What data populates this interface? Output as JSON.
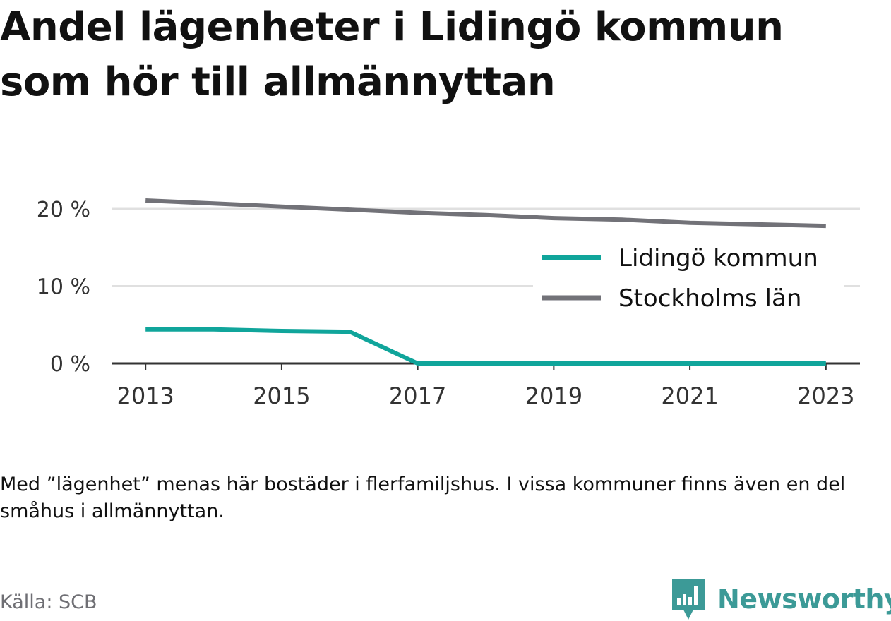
{
  "header": {
    "title": "Andel lägenheter i Lidingö kommun som hör till allmännyttan"
  },
  "footer": {
    "note": "Med ”lägenhet” menas här bostäder i flerfamiljshus. I vissa kommuner finns även en del småhus i allmännyttan.",
    "source": "Källa: SCB",
    "brand": "Newsworthy"
  },
  "chart_data": {
    "type": "line",
    "title": "Andel lägenheter i Lidingö kommun som hör till allmännyttan",
    "xlabel": "",
    "ylabel": "",
    "x": [
      2013,
      2014,
      2015,
      2016,
      2017,
      2018,
      2019,
      2020,
      2021,
      2022,
      2023
    ],
    "x_ticks": [
      2013,
      2015,
      2017,
      2019,
      2021,
      2023
    ],
    "x_tick_labels": [
      "2013",
      "2015",
      "2017",
      "2019",
      "2021",
      "2023"
    ],
    "y_ticks": [
      0,
      10,
      20
    ],
    "y_tick_labels": [
      "0 %",
      "10 %",
      "20 %"
    ],
    "ylim": [
      0,
      22
    ],
    "xlim": [
      2012.5,
      2023.5
    ],
    "grid": true,
    "legend_position": "right",
    "series": [
      {
        "name": "Lidingö kommun",
        "color": "#10a59b",
        "values": [
          4.4,
          4.4,
          4.2,
          4.1,
          0.0,
          0.0,
          0.0,
          0.0,
          0.0,
          0.0,
          0.0
        ]
      },
      {
        "name": "Stockholms län",
        "color": "#727278",
        "values": [
          21.1,
          20.7,
          20.3,
          19.9,
          19.5,
          19.2,
          18.8,
          18.6,
          18.2,
          18.0,
          17.8
        ]
      }
    ]
  }
}
